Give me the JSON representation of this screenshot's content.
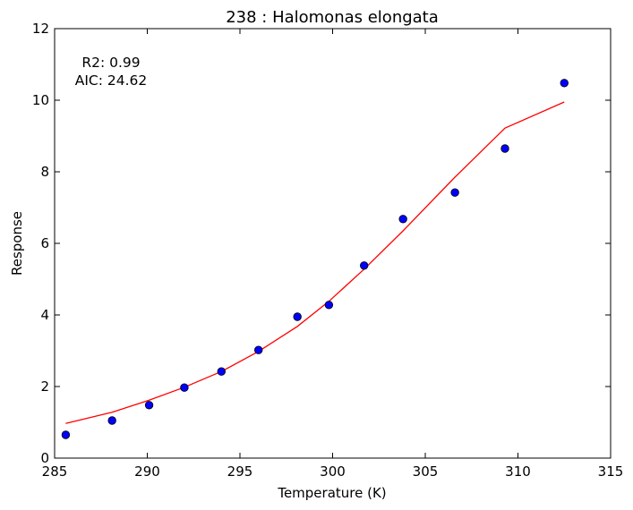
{
  "chart_data": {
    "type": "scatter",
    "title": "238 : Halomonas elongata",
    "xlabel": "Temperature (K)",
    "ylabel": "Response",
    "xlim": [
      285,
      315
    ],
    "ylim": [
      0,
      12
    ],
    "xticks": [
      285,
      290,
      295,
      300,
      305,
      310,
      315
    ],
    "yticks": [
      0,
      2,
      4,
      6,
      8,
      10,
      12
    ],
    "grid": false,
    "annotations": [
      "R2: 0.99",
      "AIC: 24.62"
    ],
    "series": [
      {
        "kind": "scatter",
        "color": "#0000ff",
        "x": [
          285.6,
          288.1,
          290.1,
          292.0,
          294.0,
          296.0,
          298.1,
          299.8,
          301.7,
          303.8,
          306.6,
          309.3,
          312.5
        ],
        "y": [
          0.65,
          1.05,
          1.48,
          1.97,
          2.42,
          3.02,
          3.95,
          4.28,
          5.38,
          6.68,
          7.42,
          8.65,
          10.48
        ]
      },
      {
        "kind": "line",
        "color": "#ff0000",
        "x": [
          285.6,
          288.1,
          290.1,
          292.0,
          294.0,
          296.0,
          298.1,
          299.8,
          301.7,
          303.8,
          306.6,
          309.3,
          312.5
        ],
        "y": [
          0.97,
          1.28,
          1.62,
          1.98,
          2.42,
          2.98,
          3.68,
          4.38,
          5.28,
          6.35,
          7.85,
          9.22,
          9.95
        ]
      }
    ]
  }
}
